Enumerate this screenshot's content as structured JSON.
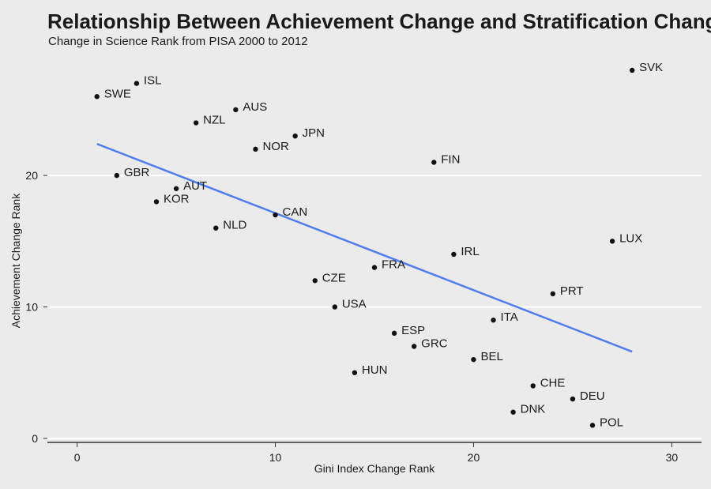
{
  "chart_data": {
    "type": "scatter",
    "title": "Relationship Between Achievement Change and Stratification Change",
    "subtitle": "Change in Science Rank from PISA 2000 to 2012",
    "xlabel": "Gini Index Change Rank",
    "ylabel": "Achievement Change Rank",
    "xlim": [
      -1.5,
      31.5
    ],
    "ylim": [
      -0.3,
      29.5
    ],
    "xticks": [
      0,
      10,
      20,
      30
    ],
    "yticks": [
      0,
      10,
      20
    ],
    "grid": "horizontal",
    "points": [
      {
        "label": "SWE",
        "x": 1,
        "y": 26
      },
      {
        "label": "ISL",
        "x": 3,
        "y": 27
      },
      {
        "label": "NZL",
        "x": 6,
        "y": 24
      },
      {
        "label": "AUS",
        "x": 8,
        "y": 25
      },
      {
        "label": "NOR",
        "x": 9,
        "y": 22
      },
      {
        "label": "JPN",
        "x": 11,
        "y": 23
      },
      {
        "label": "FIN",
        "x": 18,
        "y": 21
      },
      {
        "label": "SVK",
        "x": 28,
        "y": 28
      },
      {
        "label": "GBR",
        "x": 2,
        "y": 20
      },
      {
        "label": "AUT",
        "x": 5,
        "y": 19
      },
      {
        "label": "KOR",
        "x": 4,
        "y": 18
      },
      {
        "label": "CAN",
        "x": 10,
        "y": 17
      },
      {
        "label": "NLD",
        "x": 7,
        "y": 16
      },
      {
        "label": "LUX",
        "x": 27,
        "y": 15
      },
      {
        "label": "IRL",
        "x": 19,
        "y": 14
      },
      {
        "label": "FRA",
        "x": 15,
        "y": 13
      },
      {
        "label": "CZE",
        "x": 12,
        "y": 12
      },
      {
        "label": "PRT",
        "x": 24,
        "y": 11
      },
      {
        "label": "USA",
        "x": 13,
        "y": 10
      },
      {
        "label": "ITA",
        "x": 21,
        "y": 9
      },
      {
        "label": "ESP",
        "x": 16,
        "y": 8
      },
      {
        "label": "GRC",
        "x": 17,
        "y": 7
      },
      {
        "label": "BEL",
        "x": 20,
        "y": 6
      },
      {
        "label": "HUN",
        "x": 14,
        "y": 5
      },
      {
        "label": "CHE",
        "x": 23,
        "y": 4
      },
      {
        "label": "DEU",
        "x": 25,
        "y": 3
      },
      {
        "label": "DNK",
        "x": 22,
        "y": 2
      },
      {
        "label": "POL",
        "x": 26,
        "y": 1
      }
    ],
    "trendline": {
      "x": [
        1,
        28
      ],
      "y": [
        22.4,
        6.6
      ]
    },
    "colors": {
      "background": "#ebebeb",
      "points": "#111111",
      "trendline": "#4f7df0",
      "grid": "#ffffff",
      "axis": "#333333"
    }
  }
}
